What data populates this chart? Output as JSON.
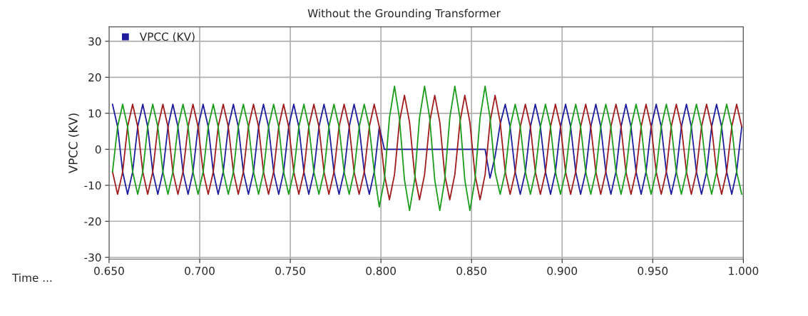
{
  "chart_data": {
    "type": "line",
    "title": "Without the Grounding Transformer",
    "xlabel": "Time ...",
    "ylabel": "VPCC (KV)",
    "xlim": [
      0.65,
      1.0
    ],
    "ylim": [
      -30.5,
      34
    ],
    "xticks": [
      {
        "value": 0.65,
        "label": "0.650"
      },
      {
        "value": 0.7,
        "label": "0.700"
      },
      {
        "value": 0.75,
        "label": "0.750"
      },
      {
        "value": 0.8,
        "label": "0.800"
      },
      {
        "value": 0.85,
        "label": "0.850"
      },
      {
        "value": 0.9,
        "label": "0.900"
      },
      {
        "value": 0.95,
        "label": "0.950"
      },
      {
        "value": 1.0,
        "label": "1.000"
      }
    ],
    "yticks": [
      -30,
      -20,
      -10,
      0,
      10,
      20,
      30
    ],
    "grid": true,
    "legend": "top left",
    "marker": "none",
    "line_style": "solid",
    "x": [
      0.6519,
      0.6547,
      0.6575,
      0.6602,
      0.663,
      0.6658,
      0.6686,
      0.6713,
      0.6741,
      0.6769,
      0.6797,
      0.6825,
      0.6852,
      0.688,
      0.6908,
      0.6936,
      0.6963,
      0.6991,
      0.7019,
      0.7047,
      0.7075,
      0.7102,
      0.713,
      0.7158,
      0.7186,
      0.7213,
      0.7241,
      0.7269,
      0.7297,
      0.7325,
      0.7352,
      0.738,
      0.7408,
      0.7436,
      0.7463,
      0.7491,
      0.7519,
      0.7547,
      0.7575,
      0.7602,
      0.763,
      0.7658,
      0.7686,
      0.7713,
      0.7741,
      0.7769,
      0.7797,
      0.7825,
      0.7852,
      0.788,
      0.7908,
      0.7936,
      0.7963,
      0.7991,
      0.8019,
      0.8047,
      0.8075,
      0.8102,
      0.813,
      0.8158,
      0.8186,
      0.8213,
      0.8241,
      0.8269,
      0.8297,
      0.8325,
      0.8352,
      0.838,
      0.8408,
      0.8436,
      0.8463,
      0.8491,
      0.8519,
      0.8547,
      0.8575,
      0.8602,
      0.863,
      0.8658,
      0.8686,
      0.8713,
      0.8741,
      0.8769,
      0.8797,
      0.8825,
      0.8852,
      0.888,
      0.8908,
      0.8936,
      0.8963,
      0.8991,
      0.9019,
      0.9047,
      0.9075,
      0.9102,
      0.913,
      0.9158,
      0.9186,
      0.9213,
      0.9241,
      0.9269,
      0.9297,
      0.9325,
      0.9352,
      0.938,
      0.9408,
      0.9436,
      0.9463,
      0.9491,
      0.9519,
      0.9547,
      0.9575,
      0.9602,
      0.963,
      0.9658,
      0.9686,
      0.9713,
      0.9741,
      0.9769,
      0.9797,
      0.9825,
      0.9852,
      0.988,
      0.9908,
      0.9936,
      0.9963,
      0.9991
    ],
    "series": [
      {
        "name": "VPCC (KV)",
        "color": "#1c1c9c",
        "values": [
          12.5,
          6.25,
          -6.25,
          -12.5,
          -6.25,
          6.25,
          12.5,
          6.25,
          -6.25,
          -12.5,
          -6.25,
          6.25,
          12.5,
          6.25,
          -6.25,
          -12.5,
          -6.25,
          6.25,
          12.5,
          6.25,
          -6.25,
          -12.5,
          -6.25,
          6.25,
          12.5,
          6.25,
          -6.25,
          -12.5,
          -6.25,
          6.25,
          12.5,
          6.25,
          -6.25,
          -12.5,
          -6.25,
          6.25,
          12.5,
          6.25,
          -6.25,
          -12.5,
          -6.25,
          6.25,
          12.5,
          6.25,
          -6.25,
          -12.5,
          -6.25,
          6.25,
          12.5,
          6.25,
          -6.25,
          -12.5,
          -6.25,
          6.25,
          0,
          0,
          0,
          0,
          0,
          0,
          0,
          0,
          0,
          0,
          0,
          0,
          0,
          0,
          0,
          0,
          0,
          0,
          0,
          0,
          0,
          -8,
          -2,
          7,
          12.5,
          6.25,
          -6.25,
          -12.5,
          -6.25,
          6.25,
          12.5,
          6.25,
          -6.25,
          -12.5,
          -6.25,
          6.25,
          12.5,
          6.25,
          -6.25,
          -12.5,
          -6.25,
          6.25,
          12.5,
          6.25,
          -6.25,
          -12.5,
          -6.25,
          6.25,
          12.5,
          6.25,
          -6.25,
          -12.5,
          -6.25,
          6.25,
          12.5,
          6.25,
          -6.25,
          -12.5,
          -6.25,
          6.25,
          12.5,
          6.25,
          -6.25,
          -12.5,
          -6.25,
          6.25,
          12.5,
          6.25,
          -6.25,
          -12.5,
          -6.25,
          6.25
        ]
      },
      {
        "color": "#a01c1c",
        "values": [
          -6.25,
          -12.5,
          -6.25,
          6.25,
          12.5,
          6.25,
          -6.25,
          -12.5,
          -6.25,
          6.25,
          12.5,
          6.25,
          -6.25,
          -12.5,
          -6.25,
          6.25,
          12.5,
          6.25,
          -6.25,
          -12.5,
          -6.25,
          6.25,
          12.5,
          6.25,
          -6.25,
          -12.5,
          -6.25,
          6.25,
          12.5,
          6.25,
          -6.25,
          -12.5,
          -6.25,
          6.25,
          12.5,
          6.25,
          -6.25,
          -12.5,
          -6.25,
          6.25,
          12.5,
          6.25,
          -6.25,
          -12.5,
          -6.25,
          6.25,
          12.5,
          6.25,
          -6.25,
          -12.5,
          -6.25,
          6.25,
          12.5,
          6.25,
          -7,
          -14,
          -7,
          7.5,
          15,
          7.5,
          -7,
          -14,
          -7,
          7.5,
          15,
          7.5,
          -7,
          -14,
          -7,
          7.5,
          15,
          7.5,
          -7,
          -14,
          -7,
          7.5,
          15,
          7.5,
          -6.25,
          -12.5,
          -6.25,
          6.25,
          12.5,
          6.25,
          -6.25,
          -12.5,
          -6.25,
          6.25,
          12.5,
          6.25,
          -6.25,
          -12.5,
          -6.25,
          6.25,
          12.5,
          6.25,
          -6.25,
          -12.5,
          -6.25,
          6.25,
          12.5,
          6.25,
          -6.25,
          -12.5,
          -6.25,
          6.25,
          12.5,
          6.25,
          -6.25,
          -12.5,
          -6.25,
          6.25,
          12.5,
          6.25,
          -6.25,
          -12.5,
          -6.25,
          6.25,
          12.5,
          6.25,
          -6.25,
          -12.5,
          -6.25,
          6.25,
          12.5,
          6.25
        ]
      },
      {
        "color": "#1c9c1c",
        "values": [
          -6.25,
          6.25,
          12.5,
          6.25,
          -6.25,
          -12.5,
          -6.25,
          6.25,
          12.5,
          6.25,
          -6.25,
          -12.5,
          -6.25,
          6.25,
          12.5,
          6.25,
          -6.25,
          -12.5,
          -6.25,
          6.25,
          12.5,
          6.25,
          -6.25,
          -12.5,
          -6.25,
          6.25,
          12.5,
          6.25,
          -6.25,
          -12.5,
          -6.25,
          6.25,
          12.5,
          6.25,
          -6.25,
          -12.5,
          -6.25,
          6.25,
          12.5,
          6.25,
          -6.25,
          -12.5,
          -6.25,
          6.25,
          12.5,
          6.25,
          -6.25,
          -12.5,
          -6.25,
          6.25,
          12.5,
          6.25,
          -6.25,
          -16,
          -8.5,
          8.75,
          17.5,
          8.75,
          -8.5,
          -17,
          -8.5,
          8.75,
          17.5,
          8.75,
          -8.5,
          -17,
          -8.5,
          8.75,
          17.5,
          8.75,
          -8.5,
          -17,
          -8.5,
          8.75,
          17.5,
          8.75,
          -6.25,
          -12.5,
          -6.25,
          6.25,
          12.5,
          6.25,
          -6.25,
          -12.5,
          -6.25,
          6.25,
          12.5,
          6.25,
          -6.25,
          -12.5,
          -6.25,
          6.25,
          12.5,
          6.25,
          -6.25,
          -12.5,
          -6.25,
          6.25,
          12.5,
          6.25,
          -6.25,
          -12.5,
          -6.25,
          6.25,
          12.5,
          6.25,
          -6.25,
          -12.5,
          -6.25,
          6.25,
          12.5,
          6.25,
          -6.25,
          -12.5,
          -6.25,
          6.25,
          12.5,
          6.25,
          -6.25,
          -12.5,
          -6.25,
          6.25,
          12.5,
          6.25,
          -6.25,
          -12.5
        ]
      }
    ]
  }
}
